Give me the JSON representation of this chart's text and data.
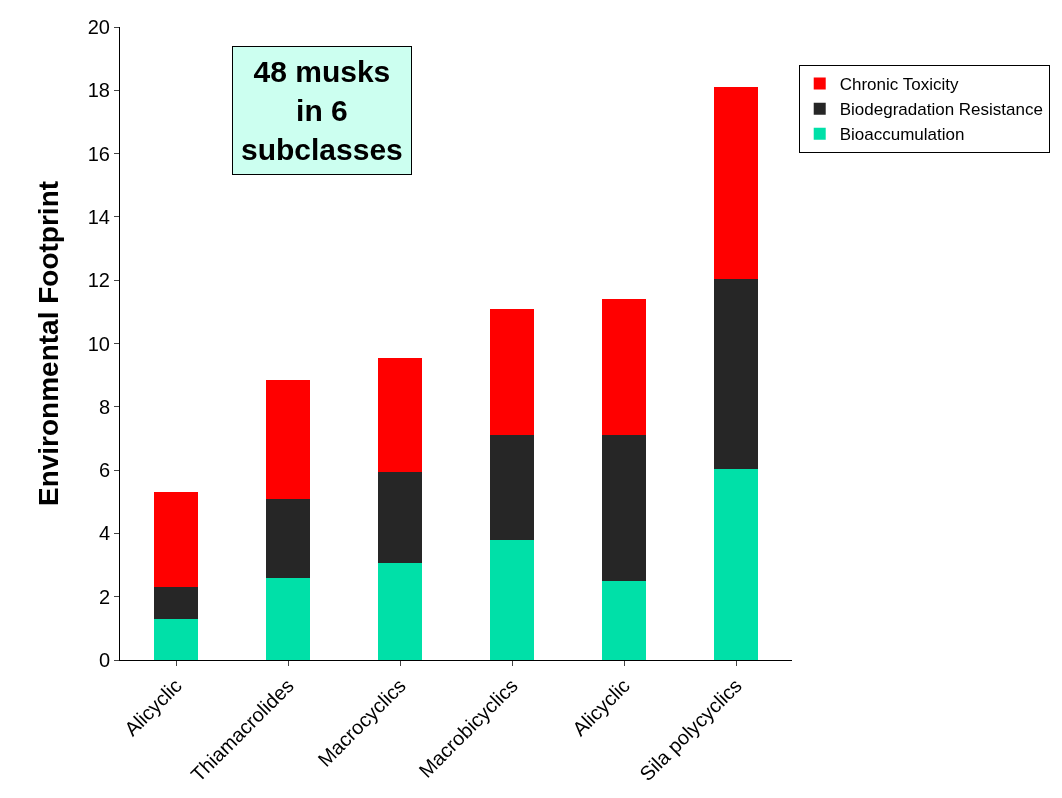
{
  "chart_data": {
    "type": "bar",
    "stacked": true,
    "ylabel": "Environmental Footprint",
    "categories": [
      "Alicyclic",
      "Thiamacrolides",
      "Macrocyclics",
      "Macrobicyclics",
      "Alicyclic",
      "Sila polycyclics"
    ],
    "series": [
      {
        "name": "Bioaccumulation",
        "color": "#00e0a8",
        "values": [
          1.3,
          2.6,
          3.05,
          3.8,
          2.5,
          6.05
        ]
      },
      {
        "name": "Biodegradation Resistance",
        "color": "#262626",
        "values": [
          1.0,
          2.5,
          2.9,
          3.3,
          4.6,
          6.0
        ]
      },
      {
        "name": "Chronic Toxicity",
        "color": "#ff0000",
        "values": [
          3.0,
          3.75,
          3.6,
          4.0,
          4.3,
          6.05
        ]
      }
    ],
    "ylim": [
      0,
      20
    ],
    "yticks": [
      0,
      2,
      4,
      6,
      8,
      10,
      12,
      14,
      16,
      18,
      20
    ],
    "legend": "right",
    "annotations": [
      "48 musks\nin 6\nsubclasses"
    ]
  }
}
